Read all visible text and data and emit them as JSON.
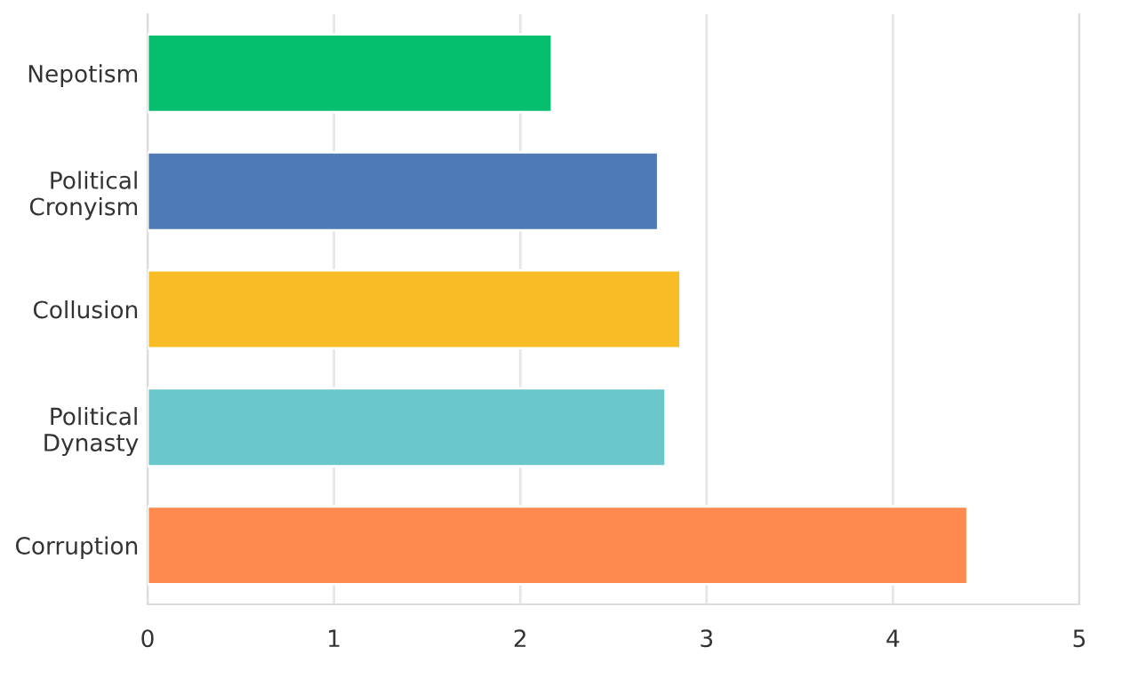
{
  "chart_data": {
    "type": "bar",
    "orientation": "horizontal",
    "categories": [
      "Nepotism",
      "Political\nCronyism",
      "Collusion",
      "Political\nDynasty",
      "Corruption"
    ],
    "values": [
      2.17,
      2.74,
      2.86,
      2.78,
      4.4
    ],
    "colors": [
      "#06bf6e",
      "#4e7ab5",
      "#f8bd26",
      "#6ac8ca",
      "#fe8a4f"
    ],
    "xlim": [
      0,
      5
    ],
    "xticks": [
      0,
      1,
      2,
      3,
      4,
      5
    ],
    "grid": "x"
  }
}
